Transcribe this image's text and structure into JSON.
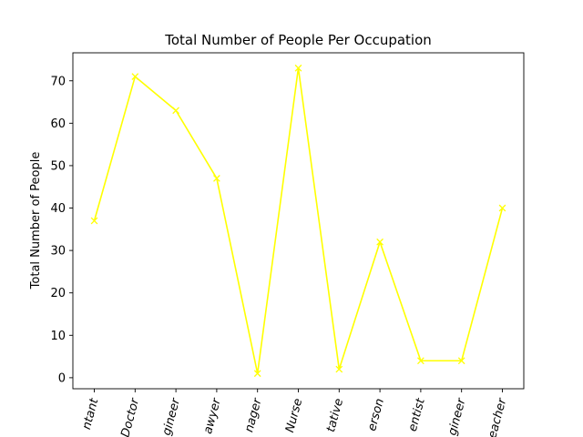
{
  "chart_data": {
    "type": "line",
    "title": "Total Number of People Per Occupation",
    "xlabel": "",
    "ylabel": "Total Number of People",
    "categories": [
      "ntant",
      "Doctor",
      "gineer",
      "awyer",
      "nager",
      "Nurse",
      "tative",
      "erson",
      "entist",
      "gineer",
      "eacher"
    ],
    "series": [
      {
        "values": [
          37,
          71,
          63,
          47,
          1,
          73,
          2,
          32,
          4,
          4,
          40
        ],
        "color": "#ffff00",
        "marker": "x"
      }
    ],
    "ylim": [
      -2.6,
      76.6
    ],
    "yticks": [
      0,
      10,
      20,
      30,
      40,
      50,
      60,
      70
    ],
    "grid": false,
    "legend": "none"
  }
}
